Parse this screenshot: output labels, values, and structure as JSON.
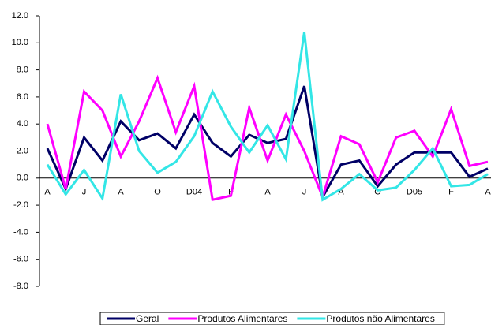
{
  "chart_data": {
    "type": "line",
    "categories": [
      "A",
      null,
      "J",
      null,
      "A",
      null,
      "O",
      null,
      "D04",
      null,
      "F",
      null,
      "A",
      null,
      "J",
      null,
      "A",
      null,
      "O",
      null,
      "D05",
      null,
      "F",
      null,
      "A"
    ],
    "series": [
      {
        "name": "Geral",
        "color": "#000066",
        "values": [
          2.2,
          -0.8,
          3.0,
          1.3,
          4.2,
          2.8,
          3.3,
          2.2,
          4.7,
          2.6,
          1.6,
          3.2,
          2.6,
          2.9,
          6.8,
          -1.4,
          1.0,
          1.3,
          -0.6,
          1.0,
          1.9,
          1.9,
          1.9,
          0.1,
          0.7
        ]
      },
      {
        "name": "Produtos Alimentares",
        "color": "#ff00ff",
        "values": [
          4.0,
          -0.8,
          6.4,
          5.0,
          1.6,
          4.2,
          7.4,
          3.4,
          6.8,
          -1.6,
          -1.3,
          5.2,
          1.3,
          4.7,
          2.0,
          -1.4,
          3.1,
          2.5,
          -0.3,
          3.0,
          3.5,
          1.6,
          5.1,
          0.9,
          1.2
        ]
      },
      {
        "name": "Produtos não Alimentares",
        "color": "#33e6e6",
        "values": [
          1.0,
          -1.2,
          0.6,
          -1.5,
          6.2,
          2.0,
          0.4,
          1.2,
          3.1,
          6.4,
          3.8,
          1.9,
          3.9,
          1.4,
          10.8,
          -1.6,
          -0.8,
          0.3,
          -0.9,
          -0.7,
          0.6,
          2.2,
          -0.6,
          -0.5,
          0.3
        ]
      }
    ],
    "ylim": [
      -8,
      12
    ],
    "yticks": [
      {
        "value": -8,
        "label": "-8.0"
      },
      {
        "value": -6,
        "label": "-6.0"
      },
      {
        "value": -4,
        "label": "-4.0"
      },
      {
        "value": -2,
        "label": "-2.0"
      },
      {
        "value": 0,
        "label": "0.0"
      },
      {
        "value": 2,
        "label": "2.0"
      },
      {
        "value": 4,
        "label": "4.0"
      },
      {
        "value": 6,
        "label": "6.0"
      },
      {
        "value": 8,
        "label": "8.0"
      },
      {
        "value": 10,
        "label": "10.0"
      },
      {
        "value": 12,
        "label": "12.0"
      }
    ],
    "grid": false,
    "legend": "bottom"
  }
}
